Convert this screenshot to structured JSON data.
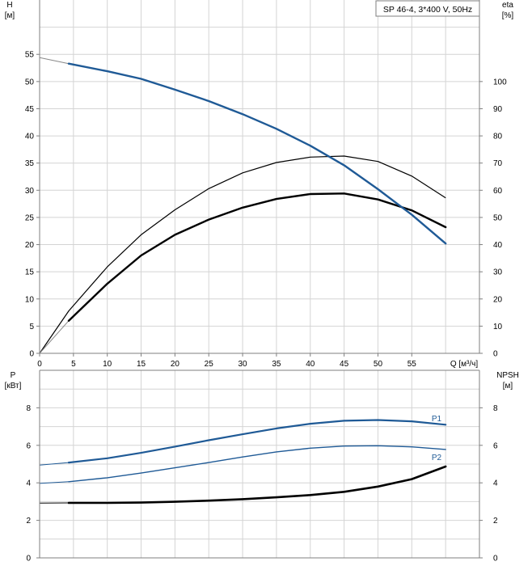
{
  "colors": {
    "blue": "#1f5a96",
    "black": "#000000",
    "grid": "#d4d4d4",
    "frame": "#7f7f7f",
    "thin_gray": "#888888"
  },
  "chart_data": [
    {
      "type": "line",
      "panel": "head-efficiency",
      "pump_label": "SP 46-4, 3*400 V, 50Hz",
      "y_left_label": [
        "H",
        "[м]"
      ],
      "y_right_label": [
        "eta",
        "[%]"
      ],
      "x_label": "Q [м³/ч]",
      "xlim": [
        0,
        65
      ],
      "ylim_left": [
        0,
        65
      ],
      "ylim_right": [
        0,
        130
      ],
      "x_ticks": [
        "0",
        "5",
        "10",
        "15",
        "20",
        "25",
        "30",
        "35",
        "40",
        "45",
        "50",
        "55"
      ],
      "y_left_ticks": [
        "0",
        "5",
        "10",
        "15",
        "20",
        "25",
        "30",
        "35",
        "40",
        "45",
        "50",
        "55"
      ],
      "y_right_ticks": [
        "0",
        "10",
        "20",
        "30",
        "40",
        "50",
        "60",
        "70",
        "80",
        "90",
        "100"
      ],
      "grid": true,
      "series": [
        {
          "key": "H",
          "axis": "left",
          "x": [
            0,
            4.3,
            10,
            15,
            20,
            25,
            30,
            35,
            40,
            45,
            50,
            55,
            60
          ],
          "y": [
            54.4,
            53.3,
            51.9,
            50.5,
            48.5,
            46.4,
            44.0,
            41.3,
            38.2,
            34.6,
            30.2,
            25.5,
            20.2
          ],
          "x_thin_end": 4.3
        },
        {
          "key": "eta_pump",
          "axis": "right",
          "x": [
            0,
            4.3,
            10,
            15,
            20,
            25,
            30,
            35,
            40,
            45,
            50,
            55,
            60
          ],
          "y": [
            0,
            15.6,
            31.8,
            43.6,
            52.8,
            60.6,
            66.4,
            70.2,
            72.2,
            72.6,
            70.6,
            65.2,
            57.2
          ]
        },
        {
          "key": "eta_total",
          "axis": "right",
          "x": [
            0,
            4.3,
            10,
            15,
            20,
            25,
            30,
            35,
            40,
            45,
            50,
            55,
            60
          ],
          "y": [
            0,
            12.0,
            25.6,
            36.0,
            43.6,
            49.2,
            53.6,
            56.8,
            58.6,
            58.8,
            56.6,
            52.6,
            46.4
          ],
          "x_thin_end": 4.3
        }
      ]
    },
    {
      "type": "line",
      "panel": "power-npsh",
      "y_left_label": [
        "P",
        "[кВт]"
      ],
      "y_right_label": [
        "NPSH",
        "[м]"
      ],
      "xlim": [
        0,
        65
      ],
      "ylim": [
        0,
        10
      ],
      "y_left_ticks": [
        "0",
        "2",
        "4",
        "6",
        "8"
      ],
      "y_right_ticks": [
        "0",
        "2",
        "4",
        "6",
        "8"
      ],
      "grid": true,
      "series": [
        {
          "name": "P1",
          "axis": "left",
          "x": [
            0,
            4.3,
            10,
            15,
            20,
            25,
            30,
            35,
            40,
            45,
            50,
            55,
            60
          ],
          "y": [
            4.95,
            5.08,
            5.31,
            5.6,
            5.93,
            6.27,
            6.59,
            6.9,
            7.15,
            7.31,
            7.35,
            7.28,
            7.1
          ],
          "x_thin_end": 4.3
        },
        {
          "name": "P2",
          "axis": "left",
          "x": [
            0,
            4.3,
            10,
            15,
            20,
            25,
            30,
            35,
            40,
            45,
            50,
            55,
            60
          ],
          "y": [
            3.97,
            4.06,
            4.27,
            4.52,
            4.8,
            5.08,
            5.38,
            5.65,
            5.85,
            5.96,
            5.98,
            5.92,
            5.78
          ],
          "x_thin_end": 4.3
        },
        {
          "key": "NPSH",
          "axis": "right",
          "x": [
            0,
            4.3,
            10,
            15,
            20,
            25,
            30,
            35,
            40,
            45,
            50,
            55,
            60
          ],
          "y": [
            2.92,
            2.93,
            2.93,
            2.95,
            2.99,
            3.05,
            3.13,
            3.23,
            3.35,
            3.52,
            3.8,
            4.2,
            4.87
          ],
          "x_thin_end": 4.3
        }
      ]
    }
  ]
}
